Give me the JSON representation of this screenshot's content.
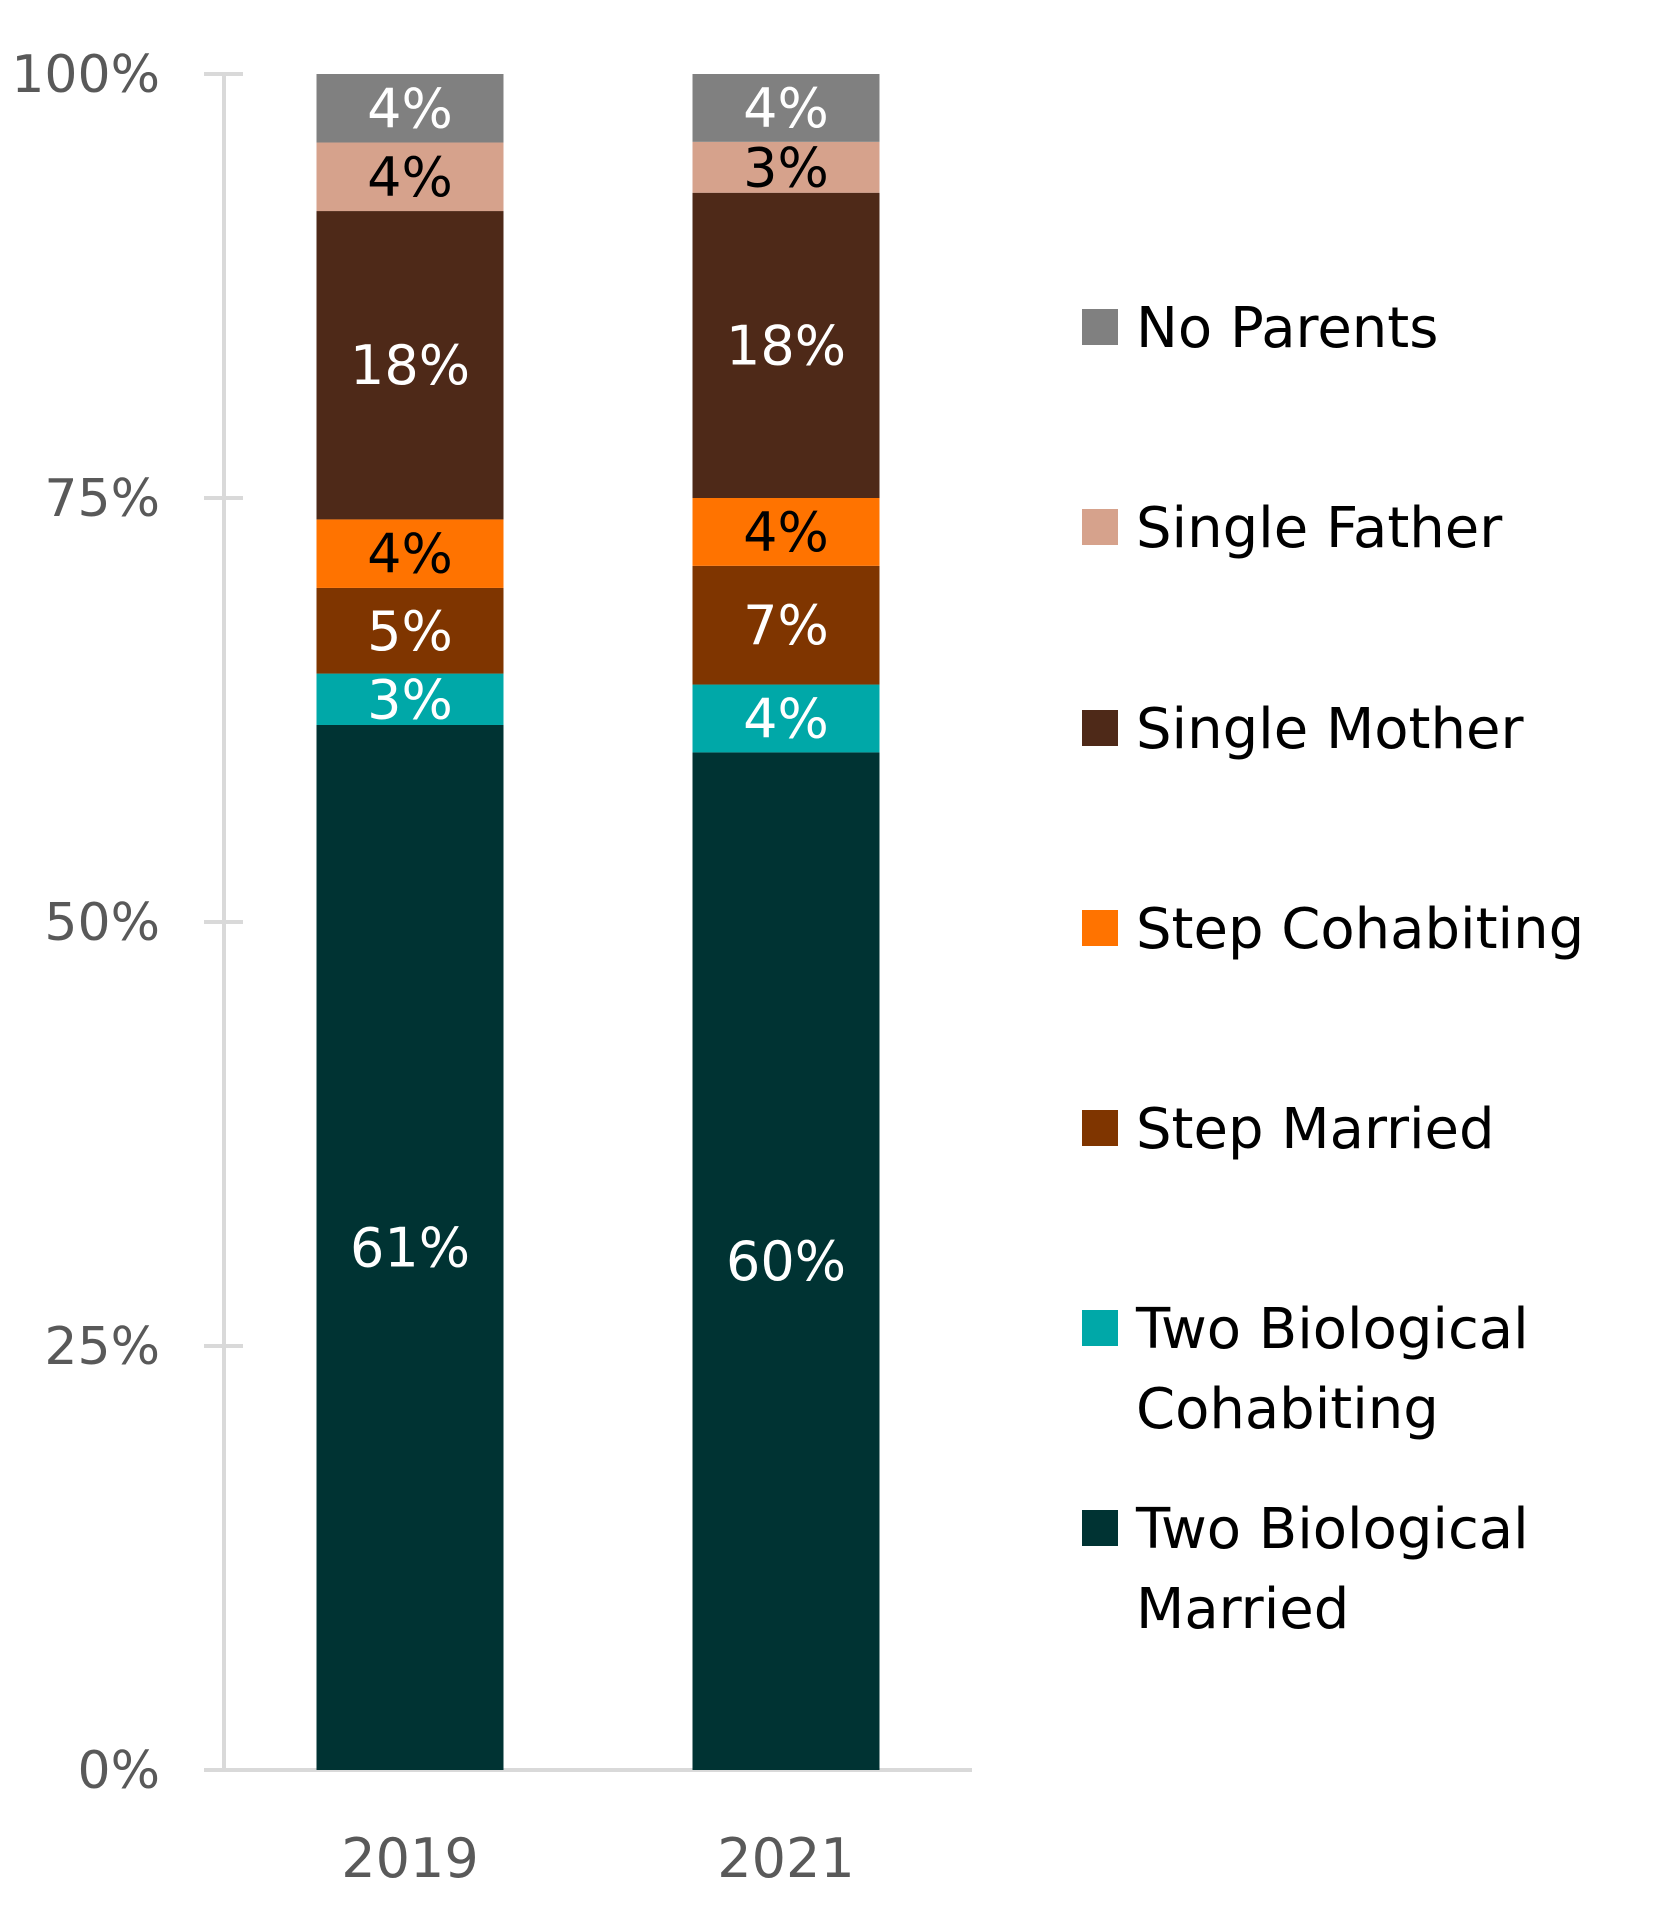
{
  "chart_data": {
    "type": "bar",
    "stacked": true,
    "percent_stacked": true,
    "categories": [
      "2019",
      "2021"
    ],
    "ylim": [
      0,
      100
    ],
    "yticks": [
      "0%",
      "25%",
      "50%",
      "75%",
      "100%"
    ],
    "grid": false,
    "legend_position": "right",
    "series": [
      {
        "name": "Two Biological Married",
        "values": [
          61,
          60
        ],
        "color": "#003333",
        "label_color": "#FFFFFF"
      },
      {
        "name": "Two Biological Cohabiting",
        "values": [
          3,
          4
        ],
        "color": "#00A8A8",
        "label_color": "#FFFFFF"
      },
      {
        "name": "Step Married",
        "values": [
          5,
          7
        ],
        "color": "#7F3500",
        "label_color": "#FFFFFF"
      },
      {
        "name": "Step Cohabiting",
        "values": [
          4,
          4
        ],
        "color": "#FF7300",
        "label_color": "#000000"
      },
      {
        "name": "Single Mother",
        "values": [
          18,
          18
        ],
        "color": "#4E2918",
        "label_color": "#FFFFFF"
      },
      {
        "name": "Single Father",
        "values": [
          4,
          3
        ],
        "color": "#D6A28C",
        "label_color": "#000000"
      },
      {
        "name": "No Parents",
        "values": [
          4,
          4
        ],
        "color": "#808080",
        "label_color": "#FFFFFF"
      }
    ],
    "legend_order": [
      "No Parents",
      "Single Father",
      "Single Mother",
      "Step Cohabiting",
      "Step Married",
      "Two Biological Cohabiting",
      "Two Biological Married"
    ],
    "value_suffix": "%"
  }
}
